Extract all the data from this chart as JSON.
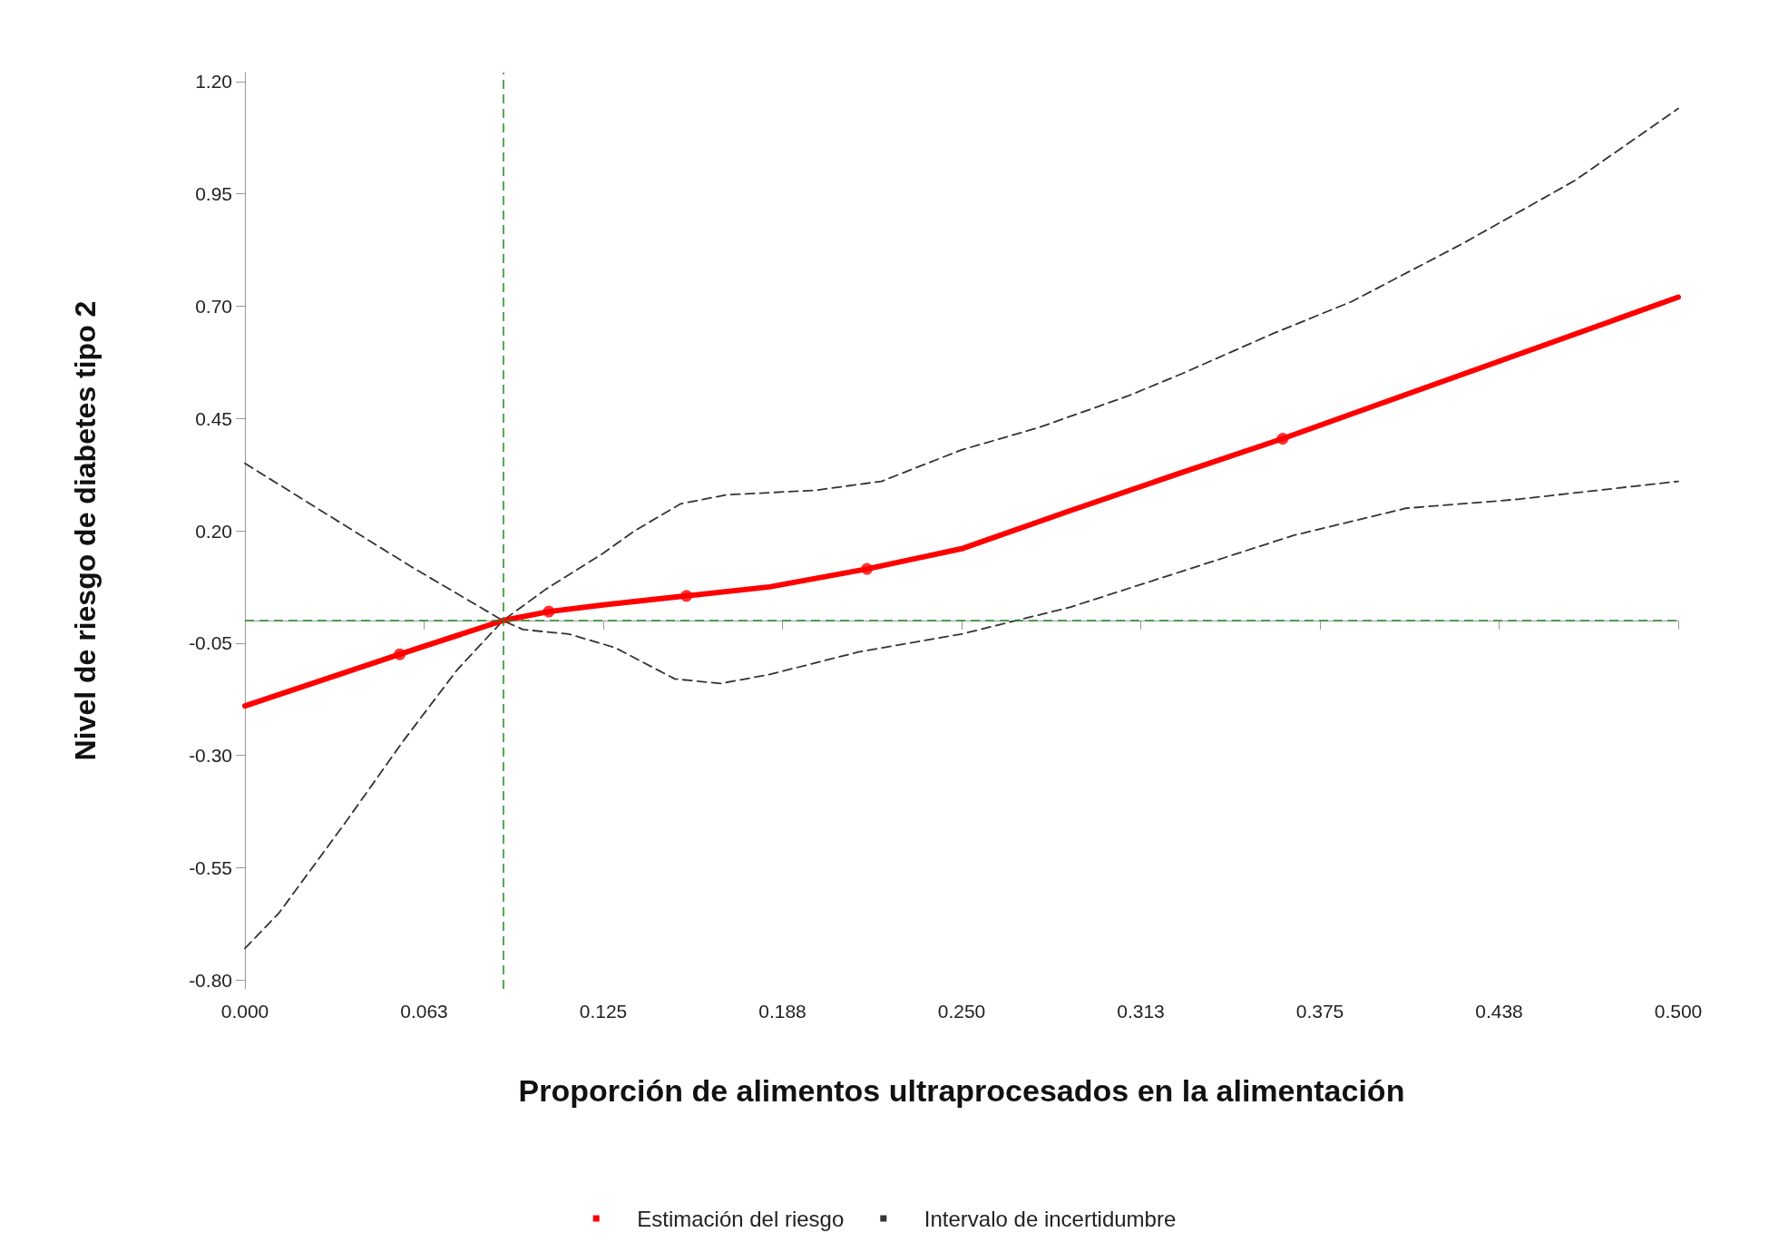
{
  "chart_data": {
    "type": "line",
    "xlabel": "Proporción de alimentos ultraprocesados en la alimentación",
    "ylabel": "Nivel de riesgo de diabetes tipo 2",
    "xlim": [
      0,
      0.5
    ],
    "xticks": [
      {
        "value": 0,
        "label": "0.000"
      },
      {
        "value": 0.0625,
        "label": "0.063"
      },
      {
        "value": 0.125,
        "label": "0.125"
      },
      {
        "value": 0.1875,
        "label": "0.188"
      },
      {
        "value": 0.25,
        "label": "0.250"
      },
      {
        "value": 0.3125,
        "label": "0.313"
      },
      {
        "value": 0.375,
        "label": "0.375"
      },
      {
        "value": 0.4375,
        "label": "0.438"
      },
      {
        "value": 0.5,
        "label": "0.500"
      }
    ],
    "ylim": [
      -0.82,
      1.22
    ],
    "yticks": [
      {
        "value": 1.2,
        "label": "1.20"
      },
      {
        "value": 0.95,
        "label": "0.95"
      },
      {
        "value": 0.7,
        "label": "0.70"
      },
      {
        "value": 0.45,
        "label": "0.45"
      },
      {
        "value": 0.2,
        "label": "0.20"
      },
      {
        "value": -0.05,
        "label": "-0.05"
      },
      {
        "value": -0.3,
        "label": "-0.30"
      },
      {
        "value": -0.55,
        "label": "-0.55"
      },
      {
        "value": -0.8,
        "label": "-0.80"
      }
    ],
    "grid": false,
    "legend": "bottom",
    "series": [
      {
        "name": "Intervalo de incertidumbre",
        "color": "#333333",
        "line_style": "dashed",
        "marker": "none",
        "x": [
          0,
          0.058,
          0.09,
          0.105,
          0.125,
          0.136,
          0.152,
          0.168,
          0.199,
          0.222,
          0.25,
          0.277,
          0.308,
          0.327,
          0.359,
          0.386,
          0.425,
          0.464,
          0.5
        ],
        "values": [
          0.35,
          0.12,
          0,
          0.07,
          0.15,
          0.2,
          0.26,
          0.28,
          0.29,
          0.31,
          0.38,
          0.43,
          0.5,
          0.55,
          0.64,
          0.71,
          0.84,
          0.98,
          1.14
        ]
      },
      {
        "color": "#333333",
        "line_style": "dashed",
        "marker": "none",
        "x": [
          0,
          0.012,
          0.035,
          0.055,
          0.074,
          0.09,
          0.097,
          0.113,
          0.129,
          0.15,
          0.166,
          0.183,
          0.214,
          0.25,
          0.269,
          0.288,
          0.327,
          0.366,
          0.405,
          0.444,
          0.5
        ],
        "values": [
          -0.73,
          -0.65,
          -0.45,
          -0.27,
          -0.11,
          0,
          -0.02,
          -0.03,
          -0.06,
          -0.13,
          -0.14,
          -0.12,
          -0.07,
          -0.03,
          0,
          0.03,
          0.11,
          0.19,
          0.25,
          0.27,
          0.31
        ]
      },
      {
        "name": "Estimación del riesgo",
        "color": "#ff0000",
        "line_style": "solid",
        "marker": "none",
        "x": [
          0,
          0.054,
          0.09,
          0.106,
          0.125,
          0.154,
          0.183,
          0.217,
          0.25,
          0.288,
          0.327,
          0.362,
          0.5
        ],
        "values": [
          -0.19,
          -0.075,
          0,
          0.02,
          0.035,
          0.055,
          0.075,
          0.115,
          0.16,
          0.245,
          0.33,
          0.405,
          0.72
        ]
      },
      {
        "type": "scatter",
        "color": "#ff0000",
        "marker": "circle",
        "x": [
          0.054,
          0.106,
          0.154,
          0.217,
          0.362
        ],
        "values": [
          -0.075,
          0.02,
          0.055,
          0.115,
          0.405
        ]
      }
    ],
    "ref_lines": [
      {
        "axis": "x",
        "value": 0.09,
        "color": "#228b22",
        "line_style": "dashed"
      },
      {
        "axis": "y",
        "value": 0,
        "color": "#228b22",
        "line_style": "dashed"
      }
    ]
  }
}
